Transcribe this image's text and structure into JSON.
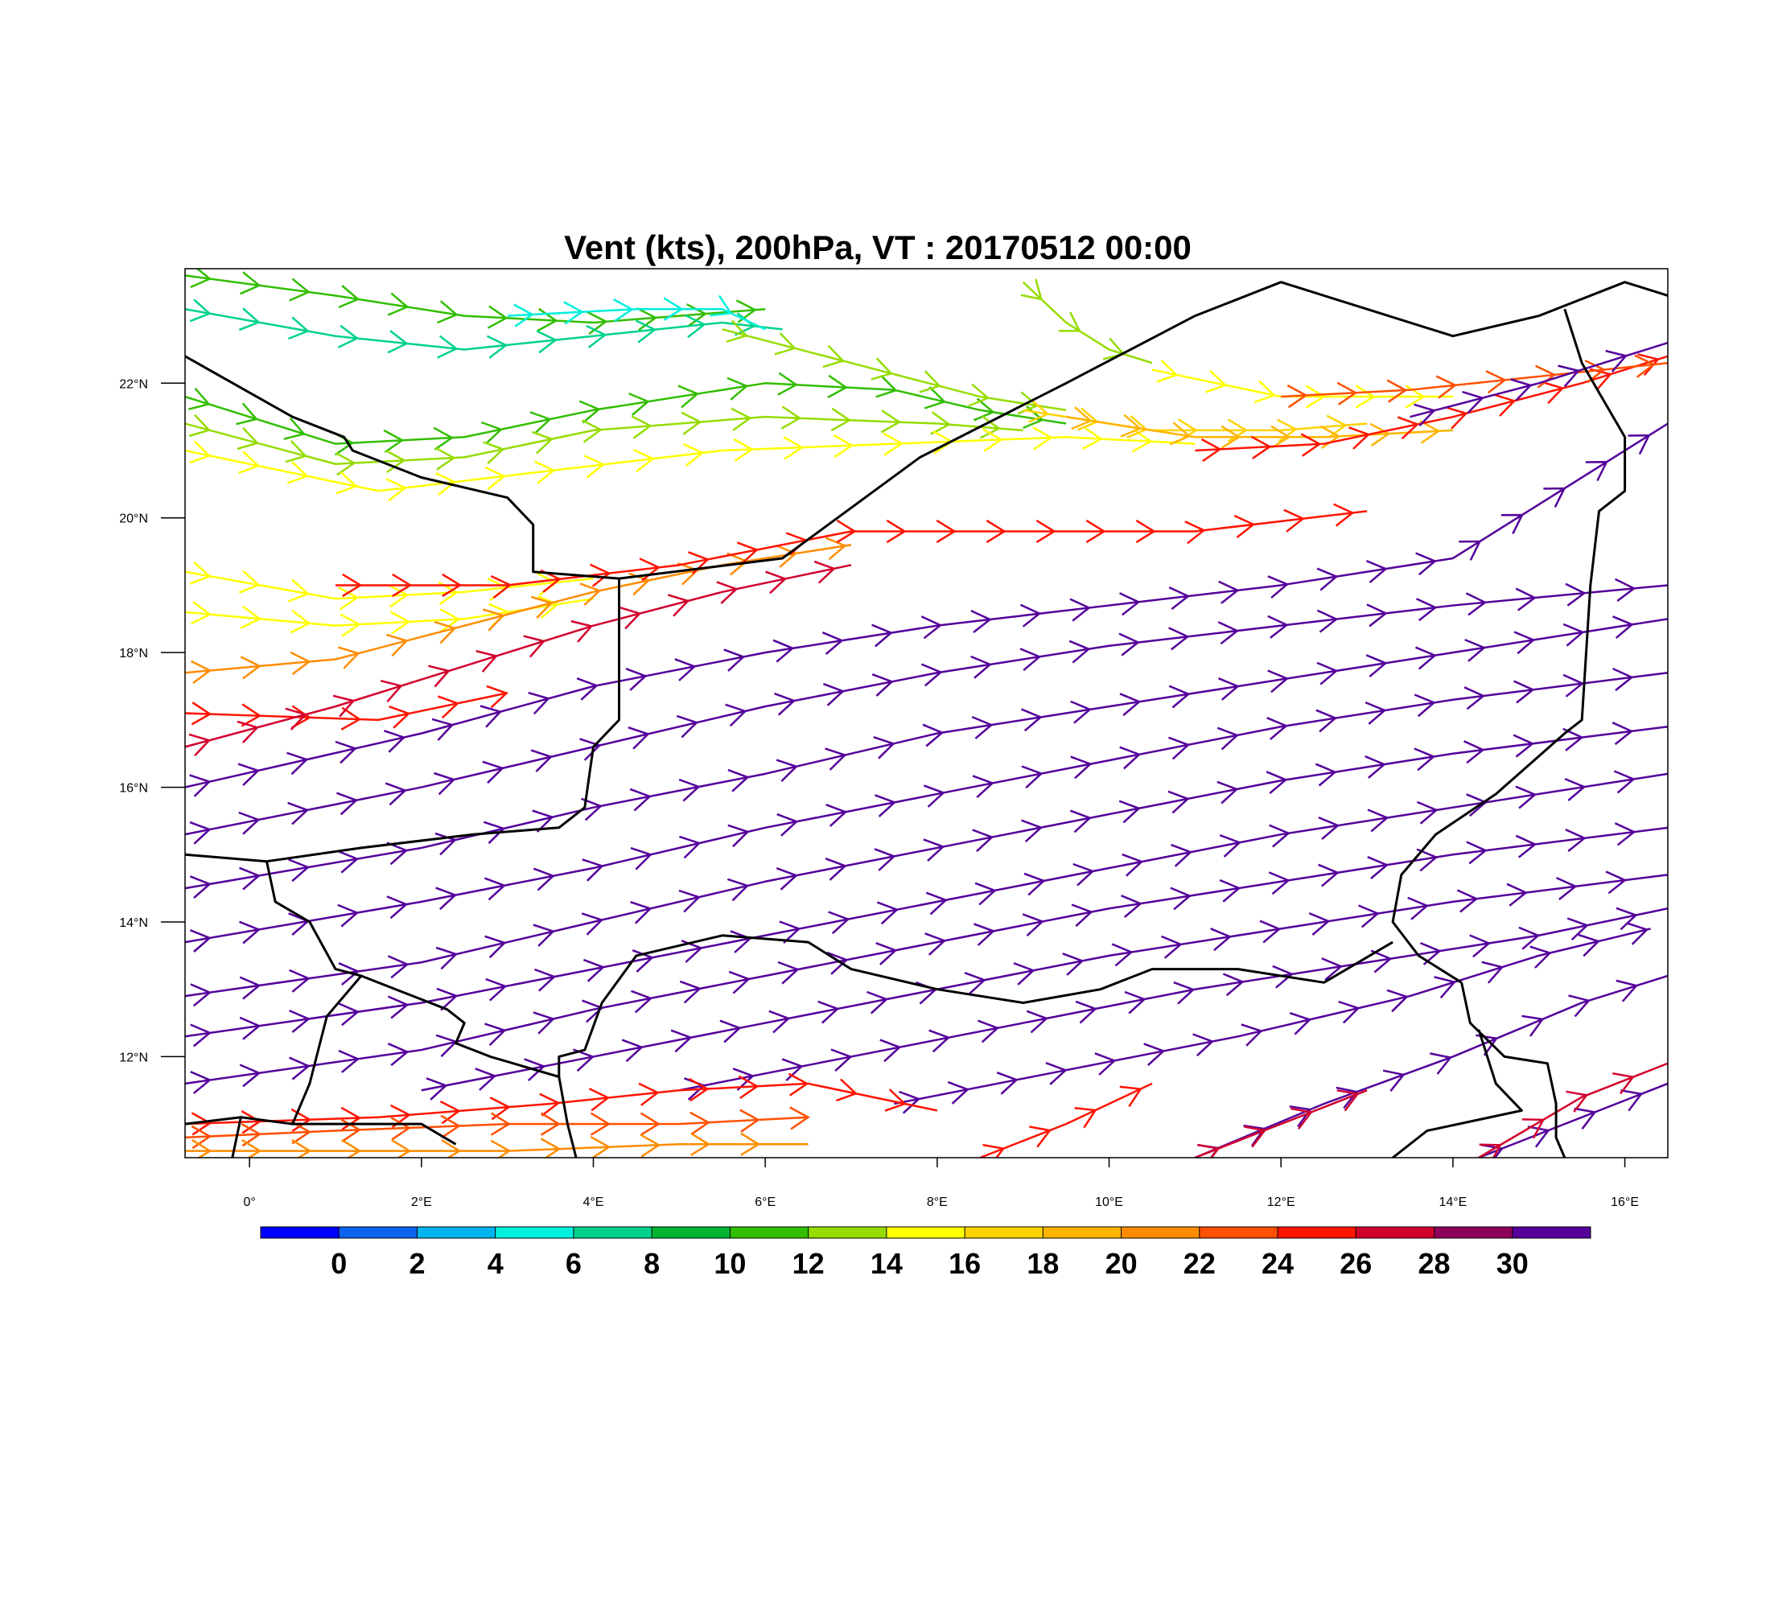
{
  "title": "Vent (kts), 200hPa, VT : 20170512  00:00",
  "map": {
    "lon_range": [
      -0.75,
      16.5
    ],
    "lat_range": [
      10.5,
      23.7
    ],
    "x_ticks": [
      "0°",
      "2°E",
      "4°E",
      "6°E",
      "8°E",
      "10°E",
      "12°E",
      "14°E",
      "16°E"
    ],
    "x_tick_values": [
      0,
      2,
      4,
      6,
      8,
      10,
      12,
      14,
      16
    ],
    "y_ticks": [
      "12°N",
      "14°N",
      "16°N",
      "18°N",
      "20°N",
      "22°N"
    ],
    "y_tick_values": [
      12,
      14,
      16,
      18,
      20,
      22
    ],
    "field": "wind streamlines with wind barbs, colored by speed"
  },
  "colorbar": {
    "colors": [
      "#0000ff",
      "#0a64f0",
      "#00b4f0",
      "#00f0dc",
      "#00d28c",
      "#00b432",
      "#32be00",
      "#96dc00",
      "#ffff00",
      "#ffd200",
      "#ffb400",
      "#ff8c00",
      "#ff5000",
      "#ff1400",
      "#d2002d",
      "#8c005a",
      "#55009b"
    ],
    "labels": [
      "0",
      "2",
      "4",
      "6",
      "8",
      "10",
      "12",
      "14",
      "16",
      "18",
      "20",
      "22",
      "24",
      "26",
      "28",
      "30"
    ]
  },
  "streamlines": [
    {
      "color": "#32be00",
      "points": [
        [
          -0.75,
          23.6
        ],
        [
          1,
          23.3
        ],
        [
          2.5,
          23.0
        ],
        [
          4,
          22.9
        ],
        [
          5,
          23.0
        ],
        [
          6,
          23.1
        ]
      ]
    },
    {
      "color": "#00d28c",
      "points": [
        [
          -0.75,
          23.1
        ],
        [
          1,
          22.7
        ],
        [
          2.5,
          22.5
        ],
        [
          4,
          22.7
        ],
        [
          5.5,
          22.9
        ],
        [
          6.2,
          22.8
        ]
      ]
    },
    {
      "color": "#00f0dc",
      "points": [
        [
          3,
          23.0
        ],
        [
          4.5,
          23.1
        ],
        [
          5.5,
          23.1
        ],
        [
          6,
          22.8
        ]
      ]
    },
    {
      "color": "#32be00",
      "points": [
        [
          -0.75,
          21.8
        ],
        [
          1,
          21.1
        ],
        [
          2.5,
          21.2
        ],
        [
          4,
          21.6
        ],
        [
          6,
          22.0
        ],
        [
          7.5,
          21.9
        ],
        [
          8.5,
          21.6
        ],
        [
          9.5,
          21.4
        ]
      ]
    },
    {
      "color": "#96dc00",
      "points": [
        [
          -0.75,
          21.4
        ],
        [
          1,
          20.8
        ],
        [
          2.5,
          20.9
        ],
        [
          4,
          21.3
        ],
        [
          6,
          21.5
        ],
        [
          8,
          21.4
        ],
        [
          9,
          21.3
        ]
      ]
    },
    {
      "color": "#96dc00",
      "points": [
        [
          5.5,
          22.8
        ],
        [
          7,
          22.3
        ],
        [
          8.5,
          21.8
        ],
        [
          9.5,
          21.6
        ]
      ]
    },
    {
      "color": "#96dc00",
      "points": [
        [
          9,
          23.5
        ],
        [
          9.5,
          22.9
        ],
        [
          10,
          22.5
        ],
        [
          10.5,
          22.3
        ]
      ]
    },
    {
      "color": "#ffff00",
      "points": [
        [
          -0.75,
          21.0
        ],
        [
          1.5,
          20.4
        ],
        [
          3.5,
          20.7
        ],
        [
          5.5,
          21.0
        ],
        [
          7.5,
          21.1
        ],
        [
          9.5,
          21.2
        ],
        [
          11,
          21.1
        ]
      ]
    },
    {
      "color": "#ffd200",
      "points": [
        [
          9,
          21.6
        ],
        [
          10.5,
          21.3
        ],
        [
          12,
          21.3
        ],
        [
          13,
          21.4
        ]
      ]
    },
    {
      "color": "#ffff00",
      "points": [
        [
          10.5,
          22.2
        ],
        [
          12,
          21.8
        ],
        [
          13,
          21.8
        ],
        [
          14,
          21.8
        ]
      ]
    },
    {
      "color": "#ffb400",
      "points": [
        [
          9.5,
          21.5
        ],
        [
          11,
          21.2
        ],
        [
          12.5,
          21.2
        ],
        [
          14,
          21.3
        ]
      ]
    },
    {
      "color": "#ff1400",
      "points": [
        [
          11,
          21.0
        ],
        [
          12.5,
          21.1
        ],
        [
          14,
          21.5
        ],
        [
          15.5,
          22.0
        ],
        [
          16.5,
          22.4
        ]
      ]
    },
    {
      "color": "#ff5000",
      "points": [
        [
          12,
          21.8
        ],
        [
          13.5,
          21.9
        ],
        [
          15,
          22.1
        ],
        [
          16.5,
          22.3
        ]
      ]
    },
    {
      "color": "#55009b",
      "points": [
        [
          13.5,
          21.5
        ],
        [
          15,
          22.0
        ],
        [
          16.5,
          22.6
        ]
      ]
    },
    {
      "color": "#ffff00",
      "points": [
        [
          -0.75,
          19.2
        ],
        [
          1,
          18.8
        ],
        [
          2.5,
          18.9
        ],
        [
          4,
          19.1
        ]
      ]
    },
    {
      "color": "#ffff00",
      "points": [
        [
          -0.75,
          18.6
        ],
        [
          1,
          18.4
        ],
        [
          2.5,
          18.5
        ],
        [
          4,
          18.8
        ]
      ]
    },
    {
      "color": "#ff8c00",
      "points": [
        [
          -0.75,
          17.7
        ],
        [
          1,
          17.9
        ],
        [
          2.5,
          18.4
        ],
        [
          4,
          18.9
        ],
        [
          5.5,
          19.3
        ],
        [
          7,
          19.6
        ]
      ]
    },
    {
      "color": "#ff1400",
      "points": [
        [
          1,
          19.0
        ],
        [
          3,
          19.0
        ],
        [
          5,
          19.3
        ],
        [
          7,
          19.8
        ],
        [
          9,
          19.8
        ],
        [
          11,
          19.8
        ],
        [
          13,
          20.1
        ]
      ]
    },
    {
      "color": "#ff1400",
      "points": [
        [
          -0.75,
          17.1
        ],
        [
          1.5,
          17.0
        ],
        [
          3,
          17.4
        ]
      ]
    },
    {
      "color": "#d2002d",
      "points": [
        [
          -0.75,
          16.6
        ],
        [
          1,
          17.2
        ],
        [
          2.5,
          17.8
        ],
        [
          4,
          18.4
        ],
        [
          5.5,
          18.9
        ],
        [
          7,
          19.3
        ]
      ]
    },
    {
      "color": "#55009b",
      "points": [
        [
          -0.75,
          16.0
        ],
        [
          2,
          16.8
        ],
        [
          4,
          17.5
        ],
        [
          6,
          18.0
        ],
        [
          8,
          18.4
        ],
        [
          10,
          18.7
        ],
        [
          12,
          19.0
        ],
        [
          14,
          19.4
        ],
        [
          16.5,
          21.4
        ]
      ]
    },
    {
      "color": "#55009b",
      "points": [
        [
          -0.75,
          15.3
        ],
        [
          2,
          16.0
        ],
        [
          4,
          16.6
        ],
        [
          6,
          17.2
        ],
        [
          8,
          17.7
        ],
        [
          10,
          18.1
        ],
        [
          12,
          18.4
        ],
        [
          14,
          18.7
        ],
        [
          16.5,
          19.0
        ]
      ]
    },
    {
      "color": "#55009b",
      "points": [
        [
          -0.75,
          14.5
        ],
        [
          2,
          15.1
        ],
        [
          4,
          15.7
        ],
        [
          6,
          16.2
        ],
        [
          8,
          16.8
        ],
        [
          10,
          17.2
        ],
        [
          12,
          17.6
        ],
        [
          14,
          18.0
        ],
        [
          16.5,
          18.5
        ]
      ]
    },
    {
      "color": "#55009b",
      "points": [
        [
          -0.75,
          13.7
        ],
        [
          2,
          14.3
        ],
        [
          4,
          14.8
        ],
        [
          6,
          15.4
        ],
        [
          8,
          15.9
        ],
        [
          10,
          16.4
        ],
        [
          12,
          16.9
        ],
        [
          14,
          17.3
        ],
        [
          16.5,
          17.7
        ]
      ]
    },
    {
      "color": "#55009b",
      "points": [
        [
          -0.75,
          12.9
        ],
        [
          2,
          13.4
        ],
        [
          4,
          14.0
        ],
        [
          6,
          14.6
        ],
        [
          8,
          15.1
        ],
        [
          10,
          15.6
        ],
        [
          12,
          16.1
        ],
        [
          14,
          16.5
        ],
        [
          16.5,
          16.9
        ]
      ]
    },
    {
      "color": "#55009b",
      "points": [
        [
          -0.75,
          12.3
        ],
        [
          2,
          12.8
        ],
        [
          4,
          13.3
        ],
        [
          6,
          13.8
        ],
        [
          8,
          14.3
        ],
        [
          10,
          14.8
        ],
        [
          12,
          15.3
        ],
        [
          14,
          15.7
        ],
        [
          16.5,
          16.2
        ]
      ]
    },
    {
      "color": "#55009b",
      "points": [
        [
          -0.75,
          11.6
        ],
        [
          2,
          12.1
        ],
        [
          4,
          12.7
        ],
        [
          6,
          13.2
        ],
        [
          8,
          13.7
        ],
        [
          10,
          14.2
        ],
        [
          12,
          14.6
        ],
        [
          14,
          15.0
        ],
        [
          16.5,
          15.4
        ]
      ]
    },
    {
      "color": "#55009b",
      "points": [
        [
          2,
          11.5
        ],
        [
          4,
          12.0
        ],
        [
          6,
          12.5
        ],
        [
          8,
          13.0
        ],
        [
          10,
          13.5
        ],
        [
          12,
          13.9
        ],
        [
          14,
          14.3
        ],
        [
          16.5,
          14.7
        ]
      ]
    },
    {
      "color": "#55009b",
      "points": [
        [
          5,
          11.5
        ],
        [
          7,
          12.0
        ],
        [
          9,
          12.5
        ],
        [
          11,
          13.0
        ],
        [
          13,
          13.4
        ],
        [
          15,
          13.8
        ],
        [
          16.5,
          14.2
        ]
      ]
    },
    {
      "color": "#55009b",
      "points": [
        [
          7.5,
          11.3
        ],
        [
          9.5,
          11.8
        ],
        [
          11.5,
          12.3
        ],
        [
          13.5,
          12.9
        ],
        [
          15,
          13.5
        ],
        [
          16.3,
          13.9
        ]
      ]
    },
    {
      "color": "#55009b",
      "points": [
        [
          11,
          10.5
        ],
        [
          12.5,
          11.3
        ],
        [
          14,
          12.0
        ],
        [
          15.5,
          12.8
        ],
        [
          16.5,
          13.2
        ]
      ]
    },
    {
      "color": "#55009b",
      "points": [
        [
          14.3,
          10.5
        ],
        [
          15.3,
          11.0
        ],
        [
          16.5,
          11.6
        ]
      ]
    },
    {
      "color": "#ff1400",
      "points": [
        [
          -0.75,
          11.0
        ],
        [
          1.5,
          11.1
        ],
        [
          3.5,
          11.3
        ],
        [
          5,
          11.5
        ],
        [
          6.5,
          11.6
        ],
        [
          8,
          11.2
        ]
      ]
    },
    {
      "color": "#ff5000",
      "points": [
        [
          -0.75,
          10.8
        ],
        [
          1,
          10.9
        ],
        [
          3,
          11.0
        ],
        [
          5,
          11.0
        ],
        [
          6.5,
          11.1
        ]
      ]
    },
    {
      "color": "#ff8c00",
      "points": [
        [
          -0.75,
          10.6
        ],
        [
          1,
          10.6
        ],
        [
          3,
          10.6
        ],
        [
          5,
          10.7
        ],
        [
          6.5,
          10.7
        ]
      ]
    },
    {
      "color": "#ff1400",
      "points": [
        [
          8.5,
          10.5
        ],
        [
          9.5,
          11.0
        ],
        [
          10.5,
          11.6
        ]
      ]
    },
    {
      "color": "#d2002d",
      "points": [
        [
          11,
          10.5
        ],
        [
          12,
          11.0
        ],
        [
          13,
          11.5
        ]
      ]
    },
    {
      "color": "#d2002d",
      "points": [
        [
          14.3,
          10.5
        ],
        [
          15.5,
          11.4
        ],
        [
          16.5,
          11.9
        ]
      ]
    }
  ],
  "borders": [
    [
      [
        -0.75,
        22.4
      ],
      [
        0.5,
        21.5
      ],
      [
        1.1,
        21.2
      ],
      [
        1.2,
        21.0
      ],
      [
        2,
        20.6
      ],
      [
        3,
        20.3
      ],
      [
        3.3,
        19.9
      ],
      [
        3.3,
        19.2
      ],
      [
        4.3,
        19.1
      ],
      [
        4.3,
        17.0
      ],
      [
        4.0,
        16.6
      ],
      [
        3.9,
        15.7
      ],
      [
        3.6,
        15.4
      ],
      [
        2.6,
        15.3
      ],
      [
        1.3,
        15.1
      ],
      [
        0.2,
        14.9
      ],
      [
        -0.75,
        15.0
      ]
    ],
    [
      [
        4.3,
        19.1
      ],
      [
        6.2,
        19.4
      ],
      [
        7.8,
        20.9
      ],
      [
        9.5,
        22.0
      ],
      [
        11,
        23.0
      ],
      [
        12,
        23.5
      ],
      [
        14,
        22.7
      ],
      [
        15,
        23.0
      ],
      [
        16,
        23.5
      ],
      [
        16.5,
        23.3
      ]
    ],
    [
      [
        15.3,
        23.1
      ],
      [
        15.5,
        22.3
      ],
      [
        16,
        21.2
      ],
      [
        16,
        20.4
      ],
      [
        15.7,
        20.1
      ],
      [
        15.6,
        19.0
      ],
      [
        15.5,
        17.0
      ],
      [
        15.3,
        16.8
      ],
      [
        14.5,
        15.9
      ],
      [
        13.8,
        15.3
      ],
      [
        13.4,
        14.7
      ],
      [
        13.3,
        14.0
      ],
      [
        13.6,
        13.5
      ],
      [
        14.1,
        13.1
      ]
    ],
    [
      [
        0.2,
        14.9
      ],
      [
        0.3,
        14.3
      ],
      [
        0.7,
        14.0
      ],
      [
        1.0,
        13.3
      ],
      [
        1.3,
        13.2
      ],
      [
        2.3,
        12.7
      ],
      [
        2.5,
        12.5
      ],
      [
        2.4,
        12.2
      ],
      [
        2.8,
        12.0
      ],
      [
        3.6,
        11.7
      ],
      [
        3.6,
        12.0
      ],
      [
        3.9,
        12.1
      ],
      [
        4.1,
        12.8
      ],
      [
        4.5,
        13.5
      ],
      [
        5.5,
        13.8
      ],
      [
        6.5,
        13.7
      ],
      [
        7,
        13.3
      ],
      [
        8,
        13.0
      ],
      [
        9,
        12.8
      ],
      [
        9.9,
        13.0
      ],
      [
        10.5,
        13.3
      ],
      [
        11.5,
        13.3
      ],
      [
        12.5,
        13.1
      ],
      [
        13.3,
        13.7
      ]
    ],
    [
      [
        1.3,
        13.2
      ],
      [
        0.9,
        12.6
      ],
      [
        0.7,
        11.6
      ],
      [
        0.5,
        11.0
      ],
      [
        -0.1,
        11.1
      ],
      [
        -0.75,
        11.0
      ]
    ],
    [
      [
        0.5,
        11.0
      ],
      [
        1,
        11.0
      ],
      [
        1.6,
        11.0
      ],
      [
        2.0,
        11.0
      ],
      [
        2.4,
        10.7
      ]
    ],
    [
      [
        3.6,
        11.7
      ],
      [
        3.7,
        11.0
      ],
      [
        3.8,
        10.5
      ]
    ],
    [
      [
        14.1,
        13.1
      ],
      [
        14.2,
        12.5
      ],
      [
        14.6,
        12.0
      ],
      [
        15.1,
        11.9
      ],
      [
        15.2,
        11.3
      ],
      [
        15.2,
        10.8
      ],
      [
        15.3,
        10.5
      ]
    ],
    [
      [
        14.3,
        12.4
      ],
      [
        14.5,
        11.6
      ],
      [
        14.8,
        11.2
      ],
      [
        13.7,
        10.9
      ],
      [
        13.3,
        10.5
      ]
    ],
    [
      [
        -0.1,
        11.1
      ],
      [
        -0.2,
        10.5
      ]
    ]
  ]
}
